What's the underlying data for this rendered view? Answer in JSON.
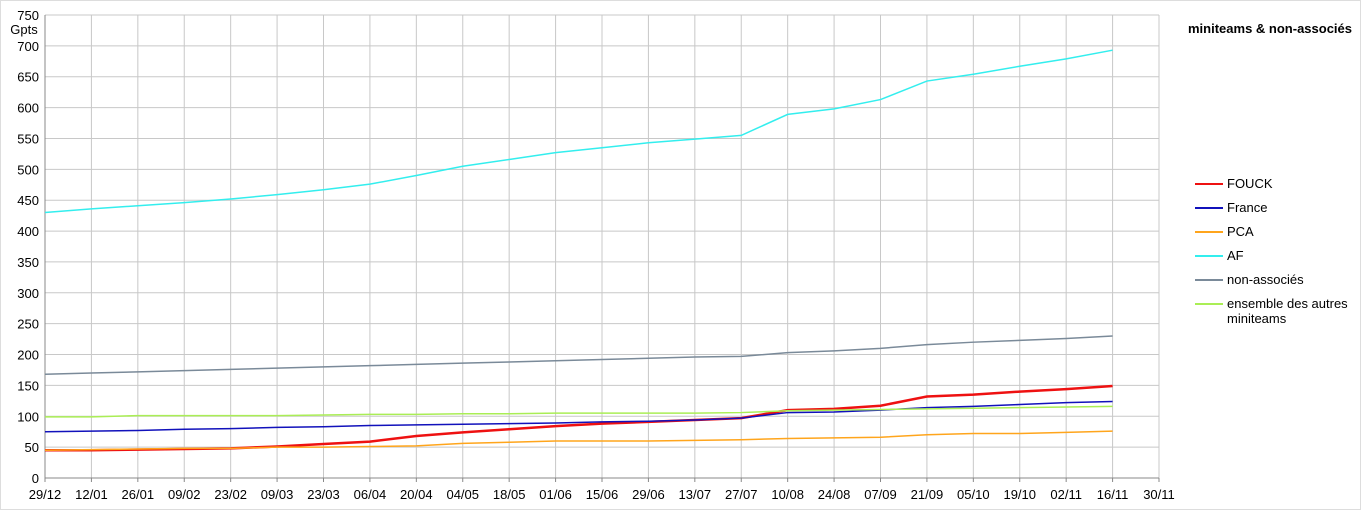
{
  "chart_data": {
    "type": "line",
    "title": "miniteams & non-associés",
    "y_label": "Gpts",
    "categories": [
      "29/12",
      "12/01",
      "26/01",
      "09/02",
      "23/02",
      "09/03",
      "23/03",
      "06/04",
      "20/04",
      "04/05",
      "18/05",
      "01/06",
      "15/06",
      "29/06",
      "13/07",
      "27/07",
      "10/08",
      "24/08",
      "07/09",
      "21/09",
      "05/10",
      "19/10",
      "02/11",
      "16/11",
      "30/11"
    ],
    "ylim": [
      0,
      750
    ],
    "yticks": [
      0,
      50,
      100,
      150,
      200,
      250,
      300,
      350,
      400,
      450,
      500,
      550,
      600,
      650,
      700,
      750
    ],
    "grid": true,
    "legend": "right",
    "series": [
      {
        "name": "FOUCK",
        "color": "#ee1111",
        "values": [
          45,
          45,
          46,
          47,
          48,
          51,
          55,
          59,
          68,
          74,
          79,
          84,
          88,
          91,
          94,
          97,
          110,
          112,
          117,
          132,
          135,
          140,
          144,
          149,
          null
        ]
      },
      {
        "name": "France",
        "color": "#1111bb",
        "values": [
          75,
          76,
          77,
          79,
          80,
          82,
          83,
          85,
          86,
          87,
          88,
          89,
          91,
          92,
          94,
          97,
          106,
          107,
          110,
          114,
          116,
          119,
          122,
          124,
          null
        ]
      },
      {
        "name": "PCA",
        "color": "#ffa51c",
        "values": [
          45,
          46,
          47,
          48,
          48,
          50,
          50,
          51,
          52,
          56,
          58,
          60,
          60,
          60,
          61,
          62,
          64,
          65,
          66,
          70,
          72,
          72,
          74,
          76,
          null
        ]
      },
      {
        "name": "AF",
        "color": "#33eeee",
        "values": [
          430,
          436,
          441,
          446,
          452,
          459,
          467,
          476,
          490,
          505,
          516,
          527,
          535,
          543,
          549,
          555,
          589,
          598,
          613,
          643,
          654,
          667,
          679,
          693,
          null
        ]
      },
      {
        "name": "non-associés",
        "color": "#7a8a99",
        "values": [
          168,
          170,
          172,
          174,
          176,
          178,
          180,
          182,
          184,
          186,
          188,
          190,
          192,
          194,
          196,
          197,
          203,
          206,
          210,
          216,
          220,
          223,
          226,
          230,
          null
        ]
      },
      {
        "name": "ensemble des autres miniteams",
        "color": "#aaee55",
        "values": [
          99,
          99,
          101,
          101,
          101,
          101,
          102,
          103,
          103,
          104,
          104,
          105,
          105,
          105,
          105,
          106,
          109,
          110,
          111,
          112,
          113,
          114,
          115,
          116,
          null
        ]
      }
    ]
  }
}
